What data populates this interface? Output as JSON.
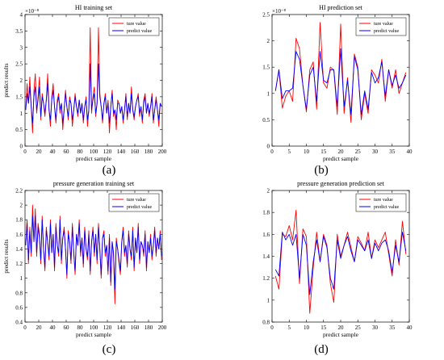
{
  "colors": {
    "true": "#ff0000",
    "predict": "#0000ff"
  },
  "chart_data": [
    {
      "id": "a",
      "type": "line",
      "title": "HI training set",
      "xlabel": "predict sample",
      "ylabel": "predict results",
      "exponent": "×10⁻⁸",
      "xlim": [
        0,
        200
      ],
      "ylim": [
        0,
        4
      ],
      "xticks": [
        0,
        20,
        40,
        60,
        80,
        100,
        120,
        140,
        160,
        180,
        200
      ],
      "yticks": [
        0,
        0.5,
        1,
        1.5,
        2,
        2.5,
        3,
        3.5,
        4
      ],
      "ytick_labels": [
        "0",
        "0.5",
        "1",
        "1.5",
        "2",
        "2.5",
        "3",
        "3.5",
        "4"
      ],
      "legend": [
        "ture value",
        "predict value"
      ],
      "legend_position": "top-right",
      "x": [
        1,
        3,
        5,
        7,
        9,
        11,
        13,
        15,
        17,
        19,
        21,
        23,
        25,
        27,
        29,
        31,
        33,
        35,
        37,
        39,
        41,
        43,
        45,
        47,
        49,
        51,
        53,
        55,
        57,
        59,
        61,
        63,
        65,
        67,
        69,
        71,
        73,
        75,
        77,
        79,
        81,
        83,
        85,
        87,
        89,
        91,
        93,
        95,
        97,
        99,
        101,
        103,
        105,
        107,
        109,
        111,
        113,
        115,
        117,
        119,
        121,
        123,
        125,
        127,
        129,
        131,
        133,
        135,
        137,
        139,
        141,
        143,
        145,
        147,
        149,
        151,
        153,
        155,
        157,
        159,
        161,
        163,
        165,
        167,
        169,
        171,
        173,
        175,
        177,
        179,
        181,
        183,
        185,
        187,
        189,
        191,
        193,
        195,
        197,
        199
      ],
      "series": [
        {
          "name": "ture value",
          "values": [
            1.1,
            1.9,
            1.3,
            2.1,
            1.2,
            0.4,
            1.7,
            2.2,
            1.0,
            1.5,
            2.1,
            0.8,
            1.6,
            1.3,
            0.9,
            1.4,
            2.2,
            1.1,
            0.6,
            1.5,
            1.9,
            1.2,
            0.7,
            1.4,
            1.6,
            1.0,
            1.3,
            0.5,
            1.1,
            1.7,
            1.2,
            0.8,
            1.5,
            1.3,
            0.6,
            1.1,
            1.6,
            1.2,
            0.9,
            1.4,
            1.0,
            1.3,
            0.7,
            1.2,
            1.5,
            0.6,
            1.1,
            3.6,
            1.0,
            1.5,
            1.8,
            0.9,
            1.3,
            3.6,
            1.6,
            1.2,
            0.7,
            1.3,
            1.6,
            1.0,
            1.4,
            0.4,
            1.2,
            1.7,
            0.9,
            1.1,
            0.5,
            1.4,
            1.3,
            1.0,
            1.2,
            0.7,
            1.1,
            1.6,
            0.8,
            1.3,
            1.0,
            1.8,
            1.1,
            0.8,
            1.2,
            1.4,
            1.6,
            0.9,
            1.2,
            0.7,
            1.4,
            1.6,
            1.0,
            1.3,
            0.9,
            1.2,
            1.6,
            0.7,
            1.1,
            1.5,
            1.1,
            0.6,
            1.3,
            1.2
          ]
        },
        {
          "name": "predict value",
          "values": [
            1.1,
            1.6,
            1.3,
            1.8,
            1.2,
            0.7,
            1.5,
            1.8,
            1.1,
            1.4,
            1.8,
            0.9,
            1.5,
            1.3,
            1.0,
            1.4,
            1.9,
            1.1,
            0.8,
            1.4,
            1.7,
            1.2,
            0.8,
            1.3,
            1.5,
            1.1,
            1.3,
            0.7,
            1.1,
            1.6,
            1.2,
            0.9,
            1.4,
            1.3,
            0.8,
            1.1,
            1.5,
            1.2,
            1.0,
            1.4,
            1.0,
            1.3,
            0.8,
            1.2,
            1.4,
            0.8,
            1.1,
            2.5,
            1.1,
            1.4,
            1.6,
            1.0,
            1.3,
            2.5,
            1.5,
            1.2,
            0.8,
            1.3,
            1.5,
            1.0,
            1.3,
            0.7,
            1.2,
            1.6,
            1.0,
            1.1,
            0.8,
            1.3,
            1.3,
            1.0,
            1.2,
            0.8,
            1.1,
            1.5,
            0.9,
            1.3,
            1.0,
            1.6,
            1.1,
            0.9,
            1.2,
            1.4,
            1.5,
            1.0,
            1.2,
            0.8,
            1.3,
            1.5,
            1.0,
            1.3,
            1.0,
            1.2,
            1.5,
            0.8,
            1.1,
            1.4,
            1.1,
            0.8,
            1.3,
            1.2
          ]
        }
      ]
    },
    {
      "id": "b",
      "type": "line",
      "title": "HI prediction set",
      "xlabel": "predict sample",
      "ylabel": "",
      "exponent": "×10⁻⁸",
      "xlim": [
        0,
        40
      ],
      "ylim": [
        0,
        2.5
      ],
      "xticks": [
        0,
        5,
        10,
        15,
        20,
        25,
        30,
        35,
        40
      ],
      "yticks": [
        0,
        0.5,
        1,
        1.5,
        2,
        2.5
      ],
      "ytick_labels": [
        "0",
        "0.5",
        "1",
        "1.5",
        "2",
        "2.5"
      ],
      "legend": [
        "ture value",
        "predict value"
      ],
      "legend_position": "top-right",
      "x": [
        1,
        2,
        3,
        4,
        5,
        6,
        7,
        8,
        9,
        10,
        11,
        12,
        13,
        14,
        15,
        16,
        17,
        18,
        19,
        20,
        21,
        22,
        23,
        24,
        25,
        26,
        27,
        28,
        29,
        30,
        31,
        32,
        33,
        34,
        35,
        36,
        37,
        38,
        39
      ],
      "series": [
        {
          "name": "ture value",
          "values": [
            1.05,
            1.45,
            0.72,
            0.95,
            1.05,
            0.85,
            2.05,
            1.85,
            1.15,
            0.65,
            1.45,
            1.6,
            0.7,
            2.35,
            1.2,
            1.1,
            1.5,
            1.45,
            0.6,
            2.32,
            0.62,
            1.3,
            0.45,
            1.75,
            1.5,
            0.5,
            1.0,
            0.62,
            1.45,
            1.35,
            1.2,
            1.65,
            0.85,
            1.45,
            1.1,
            1.45,
            1.0,
            1.2,
            1.4
          ]
        },
        {
          "name": "predict value",
          "values": [
            1.05,
            1.45,
            0.9,
            1.05,
            1.05,
            1.1,
            1.8,
            1.65,
            1.15,
            0.7,
            1.35,
            1.5,
            0.85,
            1.8,
            1.25,
            1.2,
            1.45,
            1.45,
            0.75,
            1.85,
            0.75,
            1.25,
            0.6,
            1.7,
            1.45,
            0.6,
            1.05,
            0.7,
            1.4,
            1.2,
            1.3,
            1.6,
            0.95,
            1.45,
            1.15,
            1.35,
            1.1,
            1.2,
            1.35
          ]
        }
      ]
    },
    {
      "id": "c",
      "type": "line",
      "title": "pressure generation training set",
      "xlabel": "predict sample",
      "ylabel": "predict results",
      "exponent": "",
      "xlim": [
        0,
        200
      ],
      "ylim": [
        0.4,
        2.2
      ],
      "xticks": [
        0,
        20,
        40,
        60,
        80,
        100,
        120,
        140,
        160,
        180,
        200
      ],
      "yticks": [
        0.4,
        0.6,
        0.8,
        1,
        1.2,
        1.4,
        1.6,
        1.8,
        2,
        2.2
      ],
      "ytick_labels": [
        "0.4",
        "0.6",
        "0.8",
        "1",
        "1.2",
        "1.4",
        "1.6",
        "1.8",
        "2",
        "2.2"
      ],
      "legend": [
        "ture value",
        "predict value"
      ],
      "legend_position": "top-right",
      "x": [
        1,
        3,
        5,
        7,
        9,
        11,
        13,
        15,
        17,
        19,
        21,
        23,
        25,
        27,
        29,
        31,
        33,
        35,
        37,
        39,
        41,
        43,
        45,
        47,
        49,
        51,
        53,
        55,
        57,
        59,
        61,
        63,
        65,
        67,
        69,
        71,
        73,
        75,
        77,
        79,
        81,
        83,
        85,
        87,
        89,
        91,
        93,
        95,
        97,
        99,
        101,
        103,
        105,
        107,
        109,
        111,
        113,
        115,
        117,
        119,
        121,
        123,
        125,
        127,
        129,
        131,
        133,
        135,
        137,
        139,
        141,
        143,
        145,
        147,
        149,
        151,
        153,
        155,
        157,
        159,
        161,
        163,
        165,
        167,
        169,
        171,
        173,
        175,
        177,
        179,
        181,
        183,
        185,
        187,
        189,
        191,
        193,
        195,
        197,
        199
      ],
      "series": [
        {
          "name": "ture value",
          "values": [
            1.45,
            1.8,
            1.2,
            1.7,
            1.3,
            2.0,
            1.5,
            1.95,
            1.3,
            1.75,
            1.6,
            1.2,
            1.85,
            1.4,
            1.1,
            1.7,
            1.5,
            1.25,
            1.8,
            1.35,
            1.6,
            1.1,
            1.75,
            1.45,
            1.3,
            1.85,
            1.2,
            1.55,
            1.7,
            1.4,
            1.0,
            1.65,
            1.5,
            1.2,
            1.75,
            1.35,
            1.05,
            1.6,
            1.45,
            1.8,
            1.3,
            1.55,
            1.15,
            1.7,
            1.4,
            1.25,
            1.65,
            1.05,
            1.5,
            1.7,
            1.3,
            1.6,
            1.2,
            1.75,
            1.4,
            1.0,
            1.55,
            1.65,
            1.3,
            1.45,
            1.05,
            1.6,
            0.9,
            1.5,
            1.3,
            0.65,
            1.55,
            1.4,
            1.2,
            1.05,
            1.5,
            1.7,
            1.3,
            1.45,
            1.15,
            1.65,
            1.4,
            1.25,
            1.7,
            1.1,
            1.55,
            1.35,
            1.75,
            1.2,
            1.5,
            1.45,
            1.3,
            1.65,
            1.1,
            1.5,
            1.35,
            1.6,
            1.25,
            1.45,
            1.7,
            1.3,
            1.55,
            1.4,
            1.65,
            1.25
          ]
        },
        {
          "name": "predict value",
          "values": [
            1.45,
            1.75,
            1.25,
            1.65,
            1.35,
            1.85,
            1.5,
            1.85,
            1.35,
            1.7,
            1.55,
            1.25,
            1.8,
            1.4,
            1.15,
            1.65,
            1.5,
            1.3,
            1.75,
            1.35,
            1.6,
            1.15,
            1.7,
            1.45,
            1.35,
            1.8,
            1.25,
            1.55,
            1.65,
            1.4,
            1.05,
            1.6,
            1.5,
            1.25,
            1.7,
            1.35,
            1.1,
            1.6,
            1.45,
            1.75,
            1.35,
            1.55,
            1.2,
            1.65,
            1.4,
            1.3,
            1.6,
            1.1,
            1.5,
            1.65,
            1.35,
            1.6,
            1.25,
            1.7,
            1.4,
            1.05,
            1.55,
            1.6,
            1.35,
            1.45,
            1.1,
            1.55,
            0.95,
            1.5,
            1.35,
            0.85,
            1.5,
            1.4,
            1.25,
            1.1,
            1.5,
            1.65,
            1.35,
            1.45,
            1.2,
            1.6,
            1.4,
            1.3,
            1.65,
            1.15,
            1.55,
            1.35,
            1.7,
            1.25,
            1.5,
            1.45,
            1.35,
            1.6,
            1.15,
            1.5,
            1.35,
            1.55,
            1.3,
            1.45,
            1.65,
            1.35,
            1.55,
            1.4,
            1.6,
            1.3
          ]
        }
      ]
    },
    {
      "id": "d",
      "type": "line",
      "title": "pressure generation prediction set",
      "xlabel": "predict sample",
      "ylabel": "",
      "exponent": "",
      "xlim": [
        0,
        40
      ],
      "ylim": [
        0.8,
        2
      ],
      "xticks": [
        0,
        5,
        10,
        15,
        20,
        25,
        30,
        35,
        40
      ],
      "yticks": [
        0.8,
        1,
        1.2,
        1.4,
        1.6,
        1.8,
        2
      ],
      "ytick_labels": [
        "0.8",
        "1",
        "1.2",
        "1.4",
        "1.6",
        "1.8",
        "2"
      ],
      "legend": [
        "ture value",
        "predict value"
      ],
      "legend_position": "top-right",
      "x": [
        1,
        2,
        3,
        4,
        5,
        6,
        7,
        8,
        9,
        10,
        11,
        12,
        13,
        14,
        15,
        16,
        17,
        18,
        19,
        20,
        21,
        22,
        23,
        24,
        25,
        26,
        27,
        28,
        29,
        30,
        31,
        32,
        33,
        34,
        35,
        36,
        37,
        38,
        39
      ],
      "series": [
        {
          "name": "ture value",
          "values": [
            1.22,
            1.1,
            1.6,
            1.58,
            1.68,
            1.55,
            1.82,
            1.15,
            1.65,
            1.58,
            0.88,
            1.3,
            1.62,
            1.35,
            1.6,
            1.5,
            1.15,
            0.98,
            1.6,
            1.4,
            1.5,
            1.62,
            1.48,
            1.35,
            1.58,
            1.52,
            1.45,
            1.62,
            1.38,
            1.55,
            1.48,
            1.55,
            1.62,
            1.42,
            1.22,
            1.55,
            1.32,
            1.72,
            1.42
          ]
        },
        {
          "name": "predict value",
          "values": [
            1.28,
            1.22,
            1.62,
            1.55,
            1.6,
            1.5,
            1.6,
            1.2,
            1.6,
            1.5,
            1.05,
            1.35,
            1.55,
            1.35,
            1.58,
            1.48,
            1.2,
            1.1,
            1.55,
            1.38,
            1.5,
            1.58,
            1.45,
            1.35,
            1.55,
            1.5,
            1.45,
            1.55,
            1.38,
            1.52,
            1.45,
            1.52,
            1.55,
            1.45,
            1.25,
            1.5,
            1.35,
            1.62,
            1.45
          ]
        }
      ]
    }
  ],
  "captions": [
    "(a)",
    "(b)",
    "(c)",
    "(d)"
  ]
}
